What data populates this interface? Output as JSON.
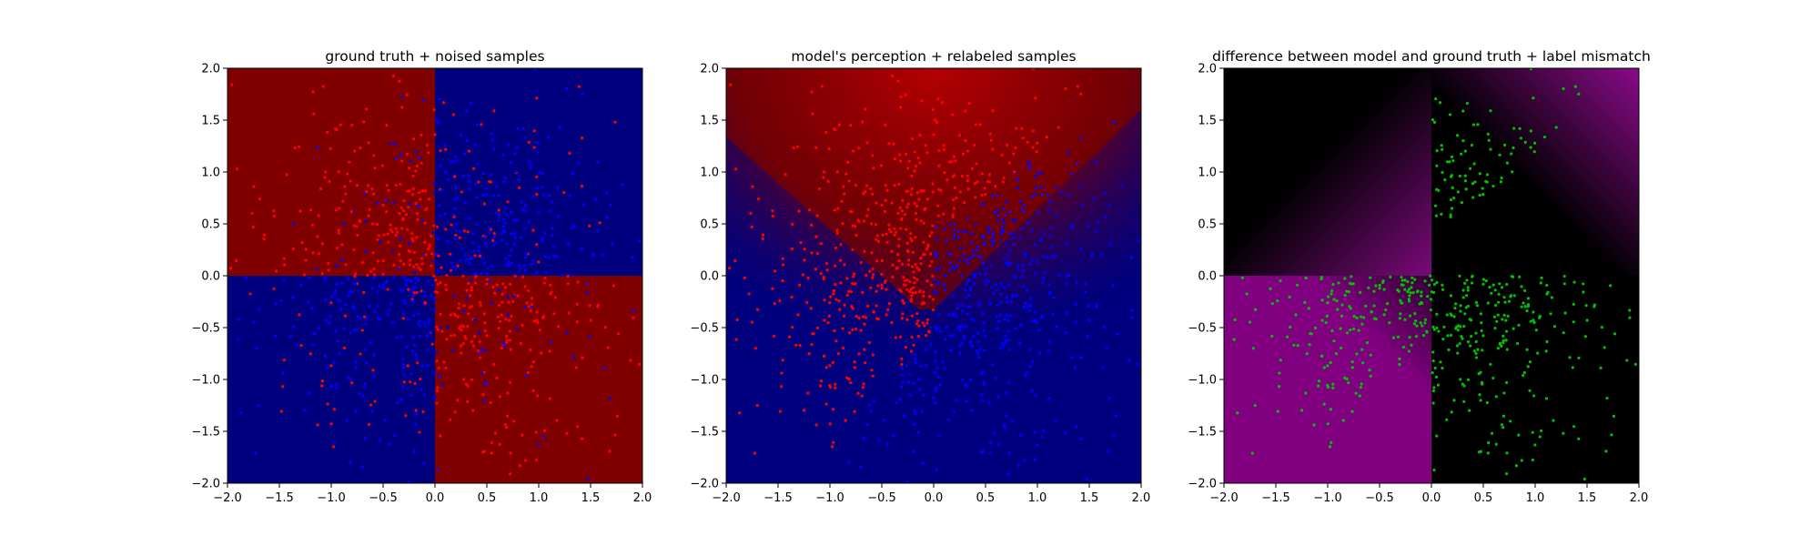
{
  "chart_data": [
    {
      "type": "heatmap",
      "title": "ground truth + noised samples",
      "xlabel": "",
      "ylabel": "",
      "xlim": [
        -2.0,
        2.0
      ],
      "ylim": [
        -2.0,
        2.0
      ],
      "x_ticks": [
        "−2.0",
        "−1.5",
        "−1.0",
        "−0.5",
        "0.0",
        "0.5",
        "1.0",
        "1.5",
        "2.0"
      ],
      "y_ticks": [
        "2.0",
        "1.5",
        "1.0",
        "0.5",
        "0.0",
        "−0.5",
        "−1.0",
        "−1.5",
        "−2.0"
      ],
      "background": "xor-quadrants",
      "quadrant_colors": {
        "class_a": "#800000",
        "class_b": "#00007f"
      },
      "point_colors": {
        "class_a": "#ff0000",
        "class_b": "#0000ff"
      },
      "grid": false,
      "legend": "none"
    },
    {
      "type": "heatmap",
      "title": "model's perception + relabeled samples",
      "xlabel": "",
      "ylabel": "",
      "xlim": [
        -2.0,
        2.0
      ],
      "ylim": [
        -2.0,
        2.0
      ],
      "x_ticks": [
        "−2.0",
        "−1.5",
        "−1.0",
        "−0.5",
        "0.0",
        "0.5",
        "1.0",
        "1.5",
        "2.0"
      ],
      "y_ticks": [
        "2.0",
        "1.5",
        "1.0",
        "0.5",
        "0.0",
        "−0.5",
        "−1.0",
        "−1.5",
        "−2.0"
      ],
      "background": "diagonal-wedge",
      "quadrant_colors": {
        "class_a": "#800000",
        "class_b": "#00007f"
      },
      "point_colors": {
        "class_a": "#ff0000",
        "class_b": "#0000ff"
      },
      "grid": false,
      "legend": "none"
    },
    {
      "type": "heatmap",
      "title": "difference between model and ground truth + label mismatch",
      "xlabel": "",
      "ylabel": "",
      "xlim": [
        -2.0,
        2.0
      ],
      "ylim": [
        -2.0,
        2.0
      ],
      "x_ticks": [
        "−2.0",
        "−1.5",
        "−1.0",
        "−0.5",
        "0.0",
        "0.5",
        "1.0",
        "1.5",
        "2.0"
      ],
      "y_ticks": [
        "2.0",
        "1.5",
        "1.0",
        "0.5",
        "0.0",
        "−0.5",
        "−1.0",
        "−1.5",
        "−2.0"
      ],
      "background": "difference",
      "colors": {
        "match": "#000000",
        "mismatch": "#800080",
        "points": "#00c000"
      },
      "grid": false,
      "legend": "none"
    }
  ]
}
